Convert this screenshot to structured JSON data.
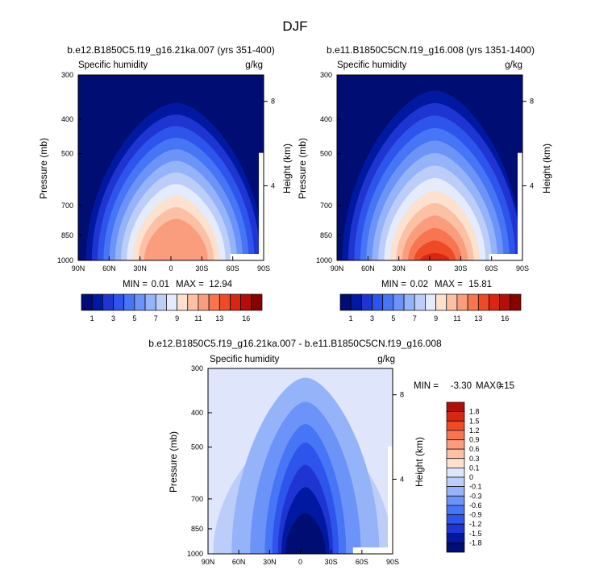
{
  "page_title": "DJF",
  "chart_data": [
    {
      "type": "contour",
      "title": "b.e12.B1850C5.f19_g16.21ka.007 (yrs 351-400)",
      "left_label": "Specific humidity",
      "units": "g/kg",
      "ylabel": "Pressure (mb)",
      "ylabel_right": "Height (km)",
      "x_ticks": [
        "90N",
        "60N",
        "30N",
        "0",
        "30S",
        "60S",
        "90S"
      ],
      "y_ticks": [
        "300",
        "400",
        "500",
        "700",
        "850",
        "1000"
      ],
      "y_ticks_right": [
        "8",
        "4"
      ],
      "min_label": "MIN =",
      "max_label": "MAX =",
      "min": "0.01",
      "max": "12.94",
      "colorbar_labels": [
        "1",
        "3",
        "5",
        "7",
        "9",
        "11",
        "13",
        "16"
      ],
      "peak_value": 12.94,
      "center_lat": -5
    },
    {
      "type": "contour",
      "title": "b.e11.B1850C5CN.f19_g16.008 (yrs 1351-1400)",
      "left_label": "Specific humidity",
      "units": "g/kg",
      "ylabel": "Pressure (mb)",
      "ylabel_right": "Height (km)",
      "x_ticks": [
        "90N",
        "60N",
        "30N",
        "0",
        "30S",
        "60S",
        "90S"
      ],
      "y_ticks": [
        "300",
        "400",
        "500",
        "700",
        "850",
        "1000"
      ],
      "y_ticks_right": [
        "8",
        "4"
      ],
      "min_label": "MIN =",
      "max_label": "MAX =",
      "min": "0.02",
      "max": "15.81",
      "colorbar_labels": [
        "1",
        "3",
        "5",
        "7",
        "9",
        "11",
        "13",
        "16"
      ],
      "peak_value": 15.81,
      "center_lat": -5
    },
    {
      "type": "contour",
      "title": "b.e12.B1850C5.f19_g16.21ka.007 - b.e11.B1850C5CN.f19_g16.008",
      "left_label": "Specific humidity",
      "units": "g/kg",
      "ylabel": "Pressure (mb)",
      "ylabel_right": "Height (km)",
      "x_ticks": [
        "90N",
        "60N",
        "30N",
        "0",
        "30S",
        "60S",
        "90S"
      ],
      "y_ticks": [
        "300",
        "400",
        "500",
        "700",
        "850",
        "1000"
      ],
      "y_ticks_right": [
        "8",
        "4"
      ],
      "min_label": "MIN =",
      "max_label": "MAX =",
      "min": "-3.30",
      "max": "0.15",
      "colorbar_labels": [
        "1.8",
        "1.5",
        "1.2",
        "0.9",
        "0.6",
        "0.3",
        "0.1",
        "0",
        "-0.1",
        "-0.3",
        "-0.6",
        "-0.9",
        "-1.2",
        "-1.5",
        "-1.8"
      ],
      "peak_value": -3.3,
      "center_lat": -5
    }
  ],
  "colors": {
    "main_levels": [
      "#000d73",
      "#0019a0",
      "#1e35d2",
      "#2d55ec",
      "#4675f5",
      "#6c93f7",
      "#94b3f9",
      "#bccdf9",
      "#e4ebfc",
      "#fde1cf",
      "#fcc0a4",
      "#fa9d7d",
      "#f77550",
      "#ee4a25",
      "#d82612",
      "#b40f07",
      "#860300"
    ],
    "diff_levels": [
      "#000d73",
      "#0019a0",
      "#1e35d2",
      "#2d55ec",
      "#4675f5",
      "#6c93f7",
      "#94b3f9",
      "#bccdf9",
      "#dfe6fb",
      "#fde1cf",
      "#fcc0a4",
      "#fa9d7d",
      "#f77550",
      "#ee4a25",
      "#d82612",
      "#b40f07"
    ]
  }
}
